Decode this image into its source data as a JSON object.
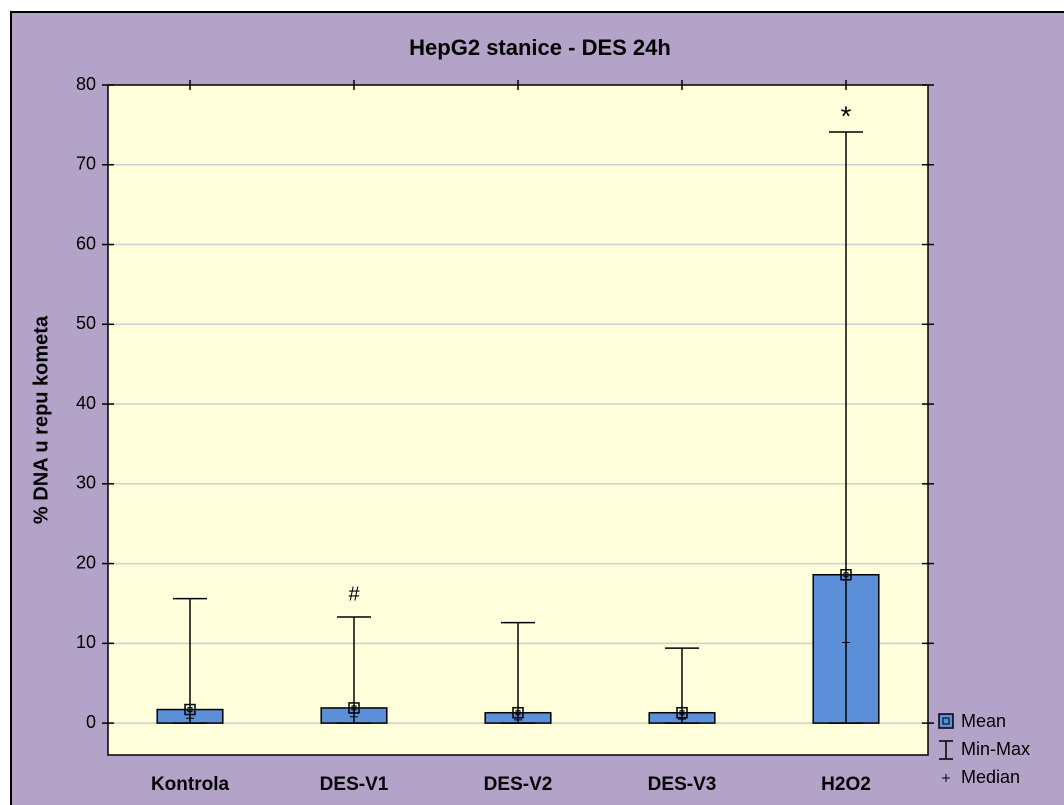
{
  "chart_data": {
    "type": "bar",
    "title": "HepG2 stanice - DES 24h",
    "y_label": "% DNA u repu kometa",
    "categories": [
      "Kontrola",
      "DES-V1",
      "DES-V2",
      "DES-V3",
      "H2O2"
    ],
    "series": [
      {
        "name": "Mean",
        "color": "#5b8fd8",
        "values": [
          1.7,
          1.9,
          1.3,
          1.3,
          18.6
        ]
      },
      {
        "name": "Median",
        "color": "#000000",
        "values": [
          0.6,
          0.8,
          0.4,
          0.5,
          10.1
        ]
      }
    ],
    "whisker": {
      "name": "Min-Max",
      "min": [
        0,
        0,
        0,
        0,
        0
      ],
      "max": [
        15.6,
        13.3,
        12.6,
        9.4,
        74.1
      ]
    },
    "annotations": [
      null,
      "#",
      null,
      null,
      "*"
    ],
    "ylim": [
      -4,
      80
    ],
    "yticks": [
      0,
      10,
      20,
      30,
      40,
      50,
      60,
      70,
      80
    ],
    "grid": true
  }
}
